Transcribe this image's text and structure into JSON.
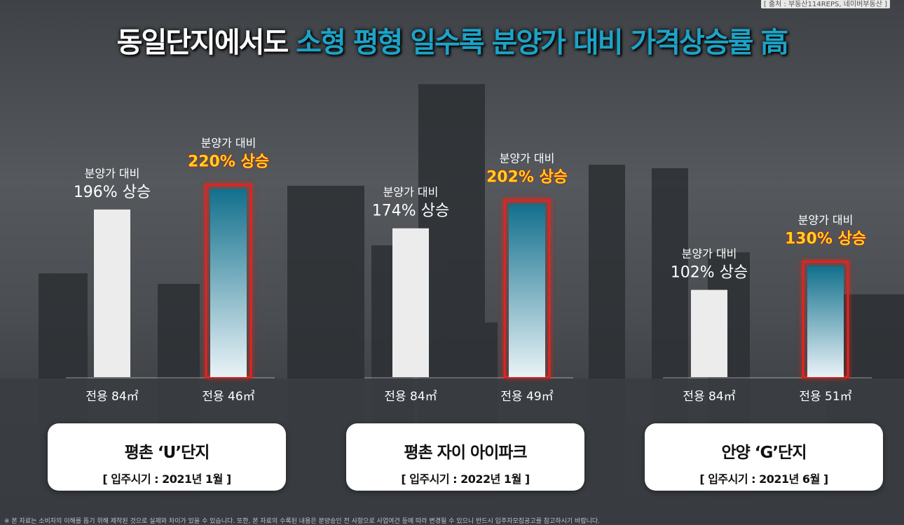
{
  "source": "[ 출처 : 부동산114REPS, 네이버부동산 ]",
  "title": {
    "part1": "동일단지에서도 ",
    "part2": "소형 평형 일수록 분양가 대비 가격상승률 高"
  },
  "chart_data": {
    "type": "bar",
    "title": "동일단지에서도 소형 평형 일수록 분양가 대비 가격상승률 高",
    "ylabel": "",
    "ylim": [
      0,
      240
    ],
    "groups": [
      {
        "name": "평촌 ‘U’단지",
        "period": "[ 입주시기 : 2021년 1월 ]",
        "bars": [
          {
            "category": "전용 84㎡",
            "value": 196,
            "label_top": "분양가 대비",
            "label_value": "196% 상승",
            "highlight": false
          },
          {
            "category": "전용 46㎡",
            "value": 220,
            "label_top": "분양가 대비",
            "label_value": "220% 상승",
            "highlight": true
          }
        ]
      },
      {
        "name": "평촌 자이 아이파크",
        "period": "[ 입주시기 : 2022년 1월 ]",
        "bars": [
          {
            "category": "전용 84㎡",
            "value": 174,
            "label_top": "분양가 대비",
            "label_value": "174% 상승",
            "highlight": false
          },
          {
            "category": "전용 49㎡",
            "value": 202,
            "label_top": "분양가 대비",
            "label_value": "202% 상승",
            "highlight": true
          }
        ]
      },
      {
        "name": "안양 ‘G’단지",
        "period": "[ 입주시기 : 2021년 6월 ]",
        "bars": [
          {
            "category": "전용 84㎡",
            "value": 102,
            "label_top": "분양가 대비",
            "label_value": "102% 상승",
            "highlight": false
          },
          {
            "category": "전용 51㎡",
            "value": 130,
            "label_top": "분양가 대비",
            "label_value": "130% 상승",
            "highlight": true
          }
        ]
      }
    ]
  },
  "colors": {
    "normal_bar": "#ececec",
    "highlight_bar_top": "#12708d",
    "highlight_bar_bottom": "#e9f3f7",
    "highlight_border": "#e8231a",
    "highlight_text": "#ffd21a",
    "title_accent": "#1da3c7"
  },
  "footnote": "※ 본 자료는 소비자의 이해를 돕기 위해 제작된 것으로 실제와 차이가 있을 수 있습니다. 또한, 본 자료의 수록된 내용은 분양승인 전 사항으로 사업여건 등에 따라 변경될 수 있으니 반드시 입주자모집공고를 참고하시기 바랍니다."
}
